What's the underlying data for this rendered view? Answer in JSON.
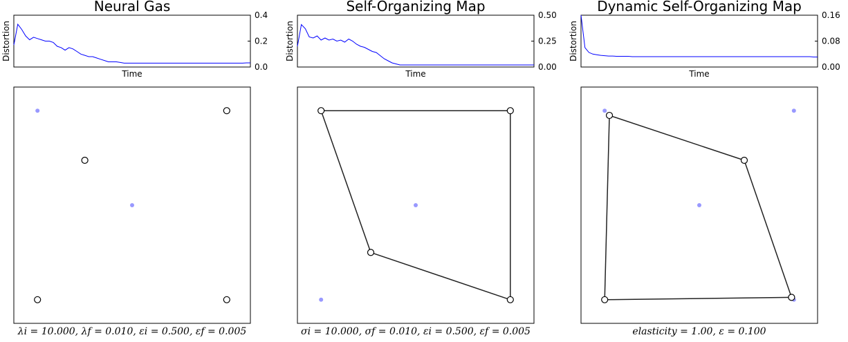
{
  "chart_data": [
    {
      "type": "line",
      "title": "Neural Gas",
      "xlabel": "Time",
      "ylabel": "Distortion",
      "ylim": [
        0,
        0.4
      ],
      "yticks": [
        "0.0",
        "0.2",
        "0.4"
      ],
      "y_axis_side": "right",
      "series": [
        {
          "color": "#0000ff",
          "values": [
            0.17,
            0.33,
            0.29,
            0.24,
            0.21,
            0.23,
            0.22,
            0.21,
            0.2,
            0.2,
            0.19,
            0.16,
            0.15,
            0.13,
            0.15,
            0.14,
            0.12,
            0.1,
            0.09,
            0.08,
            0.08,
            0.07,
            0.06,
            0.05,
            0.04,
            0.04,
            0.04,
            0.035,
            0.03,
            0.03,
            0.03,
            0.03,
            0.03,
            0.03,
            0.03,
            0.03,
            0.03,
            0.03,
            0.03,
            0.03,
            0.03,
            0.03,
            0.03,
            0.03,
            0.03,
            0.03,
            0.03,
            0.03,
            0.03,
            0.03,
            0.03,
            0.03,
            0.03,
            0.03,
            0.03,
            0.03,
            0.03,
            0.03,
            0.03,
            0.032,
            0.032
          ]
        }
      ]
    },
    {
      "type": "line",
      "title": "Self-Organizing Map",
      "xlabel": "Time",
      "ylabel": "Distortion",
      "ylim": [
        0,
        0.5
      ],
      "yticks": [
        "0.00",
        "0.25",
        "0.50"
      ],
      "y_axis_side": "right",
      "series": [
        {
          "color": "#0000ff",
          "values": [
            0.2,
            0.41,
            0.37,
            0.29,
            0.28,
            0.3,
            0.26,
            0.28,
            0.26,
            0.27,
            0.25,
            0.26,
            0.24,
            0.27,
            0.25,
            0.22,
            0.2,
            0.19,
            0.17,
            0.15,
            0.14,
            0.11,
            0.08,
            0.06,
            0.04,
            0.03,
            0.02,
            0.02,
            0.02,
            0.02,
            0.02,
            0.02,
            0.02,
            0.02,
            0.02,
            0.02,
            0.02,
            0.02,
            0.02,
            0.02,
            0.02,
            0.02,
            0.02,
            0.02,
            0.02,
            0.02,
            0.02,
            0.02,
            0.02,
            0.02,
            0.02,
            0.02,
            0.02,
            0.02,
            0.02,
            0.02,
            0.02,
            0.02,
            0.02,
            0.02,
            0.02
          ]
        }
      ]
    },
    {
      "type": "line",
      "title": "Dynamic Self-Organizing Map",
      "xlabel": "Time",
      "ylabel": "Distortion",
      "ylim": [
        0,
        0.16
      ],
      "yticks": [
        "0.00",
        "0.08",
        "0.16"
      ],
      "y_axis_side": "right",
      "series": [
        {
          "color": "#0000ff",
          "values": [
            0.16,
            0.06,
            0.045,
            0.04,
            0.038,
            0.036,
            0.035,
            0.034,
            0.034,
            0.033,
            0.033,
            0.033,
            0.033,
            0.032,
            0.032,
            0.032,
            0.032,
            0.032,
            0.032,
            0.032,
            0.032,
            0.032,
            0.032,
            0.032,
            0.032,
            0.032,
            0.032,
            0.032,
            0.032,
            0.032,
            0.032,
            0.032,
            0.032,
            0.032,
            0.032,
            0.032,
            0.032,
            0.032,
            0.032,
            0.032,
            0.032,
            0.032,
            0.032,
            0.032,
            0.032,
            0.032,
            0.032,
            0.032,
            0.032,
            0.032,
            0.032,
            0.032,
            0.032,
            0.032,
            0.032,
            0.032,
            0.032,
            0.032,
            0.032,
            0.031,
            0.031
          ]
        }
      ]
    },
    {
      "type": "scatter",
      "xlim": [
        0,
        1
      ],
      "ylim": [
        0,
        1
      ],
      "caption": "λi = 10.000, λf = 0.010, εi = 0.500, εf = 0.005",
      "samples": [
        [
          0.1,
          0.9
        ],
        [
          0.5,
          0.5
        ],
        [
          0.1,
          0.1
        ],
        [
          0.9,
          0.1
        ],
        [
          0.9,
          0.9
        ]
      ],
      "sample_color": "#9999ff",
      "nodes": [
        [
          0.9,
          0.9
        ],
        [
          0.3,
          0.69
        ],
        [
          0.1,
          0.1
        ],
        [
          0.9,
          0.1
        ]
      ],
      "edges": []
    },
    {
      "type": "scatter",
      "xlim": [
        0,
        1
      ],
      "ylim": [
        0,
        1
      ],
      "caption": "σi = 10.000, σf = 0.010, εi = 0.500, εf = 0.005",
      "samples": [
        [
          0.1,
          0.9
        ],
        [
          0.5,
          0.5
        ],
        [
          0.1,
          0.1
        ],
        [
          0.9,
          0.1
        ],
        [
          0.9,
          0.9
        ]
      ],
      "sample_color": "#9999ff",
      "nodes": [
        [
          0.1,
          0.9
        ],
        [
          0.9,
          0.9
        ],
        [
          0.9,
          0.1
        ],
        [
          0.31,
          0.3
        ]
      ],
      "edges": [
        [
          0,
          1
        ],
        [
          1,
          2
        ],
        [
          2,
          3
        ],
        [
          3,
          0
        ]
      ]
    },
    {
      "type": "scatter",
      "xlim": [
        0,
        1
      ],
      "ylim": [
        0,
        1
      ],
      "caption": "elasticity = 1.00, ε = 0.100",
      "samples": [
        [
          0.1,
          0.9
        ],
        [
          0.5,
          0.5
        ],
        [
          0.1,
          0.1
        ],
        [
          0.9,
          0.1
        ],
        [
          0.9,
          0.9
        ]
      ],
      "sample_color": "#9999ff",
      "nodes": [
        [
          0.12,
          0.88
        ],
        [
          0.69,
          0.69
        ],
        [
          0.89,
          0.11
        ],
        [
          0.1,
          0.1
        ]
      ],
      "edges": [
        [
          0,
          1
        ],
        [
          1,
          2
        ],
        [
          2,
          3
        ],
        [
          3,
          0
        ]
      ]
    }
  ]
}
